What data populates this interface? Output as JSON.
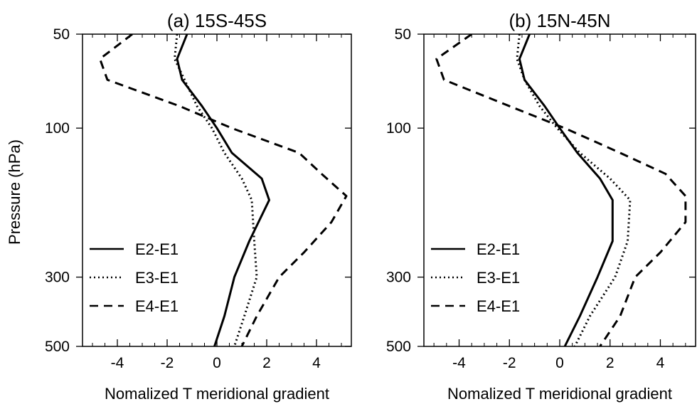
{
  "figure": {
    "ylabel": "Pressure (hPa)"
  },
  "chart_data": [
    {
      "type": "line",
      "title": "(a) 15S-45S",
      "xlabel": "Nomalized T meridional gradient",
      "ylabel": "Pressure (hPa)",
      "y_scale": "log",
      "xlim": [
        -5.4,
        5.4
      ],
      "ylim": [
        50,
        500
      ],
      "x_ticks": [
        -4,
        -2,
        0,
        2,
        4
      ],
      "y_ticks": [
        50,
        100,
        300,
        500
      ],
      "legend_position": "bottom-left",
      "series": [
        {
          "name": "E2-E1",
          "style": "solid",
          "points": [
            [
              -1.2,
              50
            ],
            [
              -1.6,
              60
            ],
            [
              -1.4,
              70
            ],
            [
              -0.6,
              85
            ],
            [
              0.0,
              100
            ],
            [
              0.6,
              120
            ],
            [
              1.8,
              145
            ],
            [
              2.1,
              170
            ],
            [
              1.3,
              230
            ],
            [
              0.7,
              300
            ],
            [
              0.3,
              400
            ],
            [
              -0.1,
              500
            ]
          ]
        },
        {
          "name": "E3-E1",
          "style": "dotted",
          "points": [
            [
              -1.6,
              50
            ],
            [
              -1.7,
              60
            ],
            [
              -1.3,
              70
            ],
            [
              -0.8,
              85
            ],
            [
              -0.2,
              100
            ],
            [
              0.3,
              120
            ],
            [
              1.0,
              145
            ],
            [
              1.4,
              170
            ],
            [
              1.5,
              230
            ],
            [
              1.6,
              300
            ],
            [
              1.1,
              400
            ],
            [
              0.7,
              500
            ]
          ]
        },
        {
          "name": "E4-E1",
          "style": "dashed",
          "points": [
            [
              -3.4,
              50
            ],
            [
              -4.7,
              60
            ],
            [
              -4.4,
              70
            ],
            [
              -1.5,
              85
            ],
            [
              0.6,
              100
            ],
            [
              3.3,
              120
            ],
            [
              4.2,
              140
            ],
            [
              5.2,
              165
            ],
            [
              4.6,
              200
            ],
            [
              3.5,
              250
            ],
            [
              2.5,
              300
            ],
            [
              1.6,
              400
            ],
            [
              1.0,
              500
            ]
          ]
        }
      ]
    },
    {
      "type": "line",
      "title": "(b) 15N-45N",
      "xlabel": "Nomalized T meridional gradient",
      "ylabel": "",
      "y_scale": "log",
      "xlim": [
        -5.4,
        5.4
      ],
      "ylim": [
        50,
        500
      ],
      "x_ticks": [
        -4,
        -2,
        0,
        2,
        4
      ],
      "y_ticks": [
        50,
        100,
        300,
        500
      ],
      "legend_position": "bottom-left",
      "series": [
        {
          "name": "E2-E1",
          "style": "solid",
          "points": [
            [
              -1.2,
              50
            ],
            [
              -1.6,
              60
            ],
            [
              -1.4,
              70
            ],
            [
              -0.6,
              85
            ],
            [
              0.0,
              100
            ],
            [
              0.7,
              120
            ],
            [
              1.6,
              145
            ],
            [
              2.1,
              170
            ],
            [
              2.1,
              230
            ],
            [
              1.5,
              300
            ],
            [
              0.8,
              400
            ],
            [
              0.2,
              500
            ]
          ]
        },
        {
          "name": "E3-E1",
          "style": "dotted",
          "points": [
            [
              -1.6,
              50
            ],
            [
              -1.7,
              60
            ],
            [
              -1.4,
              70
            ],
            [
              -0.8,
              85
            ],
            [
              -0.1,
              100
            ],
            [
              0.8,
              120
            ],
            [
              2.0,
              145
            ],
            [
              2.8,
              170
            ],
            [
              2.7,
              230
            ],
            [
              2.2,
              300
            ],
            [
              1.2,
              400
            ],
            [
              0.6,
              500
            ]
          ]
        },
        {
          "name": "E4-E1",
          "style": "dashed",
          "points": [
            [
              -3.5,
              50
            ],
            [
              -4.9,
              60
            ],
            [
              -4.6,
              70
            ],
            [
              -2.0,
              85
            ],
            [
              0.2,
              100
            ],
            [
              2.4,
              120
            ],
            [
              4.2,
              140
            ],
            [
              5.0,
              165
            ],
            [
              5.0,
              200
            ],
            [
              4.0,
              250
            ],
            [
              3.0,
              300
            ],
            [
              2.4,
              400
            ],
            [
              1.6,
              500
            ]
          ]
        }
      ]
    }
  ]
}
